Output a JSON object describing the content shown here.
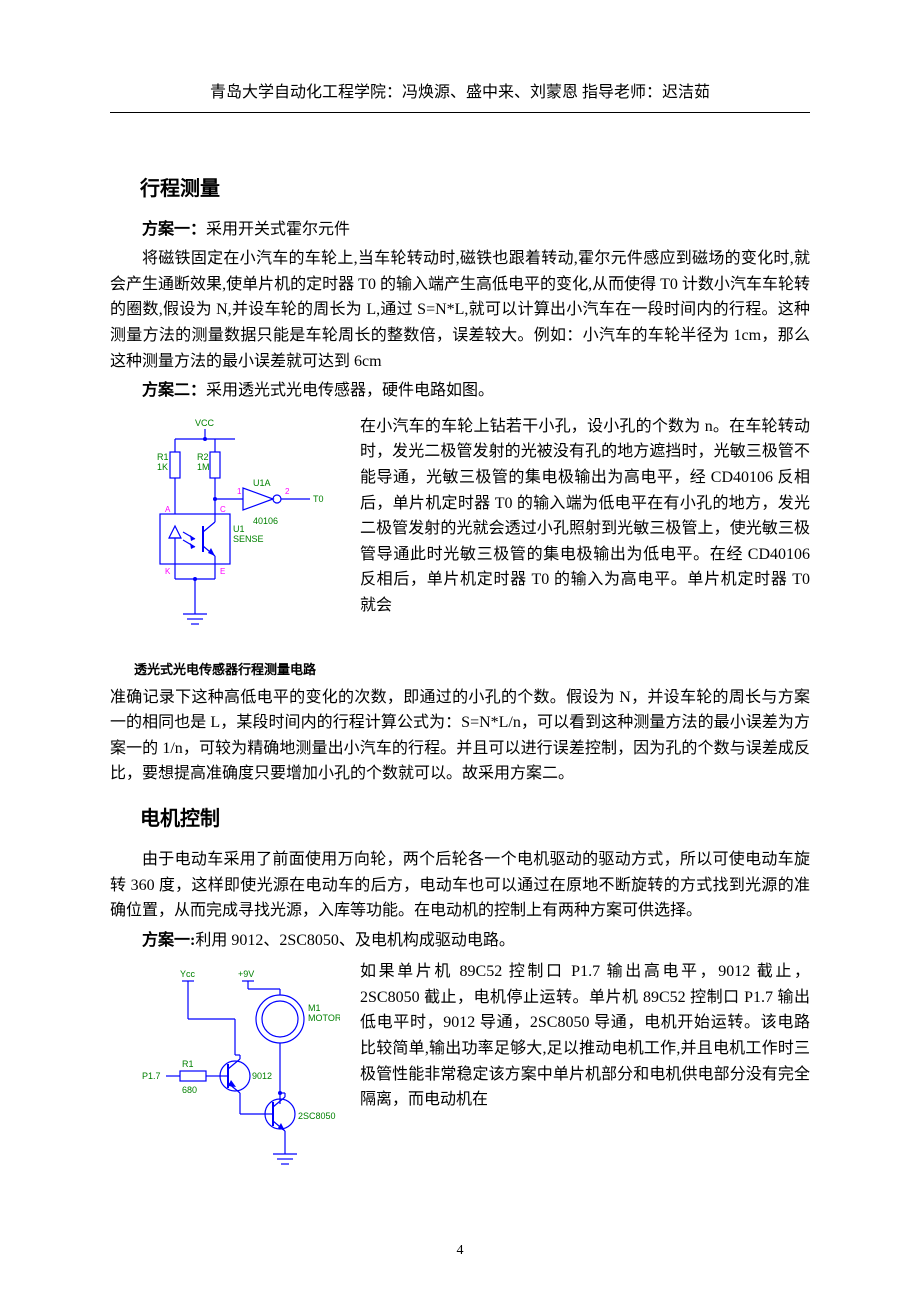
{
  "header": "青岛大学自动化工程学院：冯焕源、盛中来、刘蒙恩 指导老师：迟洁茹",
  "section1": {
    "heading": "行程测量",
    "scheme1_label": "方案一：",
    "scheme1_title": "采用开关式霍尔元件",
    "scheme1_body": "将磁铁固定在小汽车的车轮上,当车轮转动时,磁铁也跟着转动,霍尔元件感应到磁场的变化时,就会产生通断效果,使单片机的定时器 T0 的输入端产生高低电平的变化,从而使得 T0 计数小汽车车轮转的圈数,假设为 N,并设车轮的周长为 L,通过 S=N*L,就可以计算出小汽车在一段时间内的行程。这种测量方法的测量数据只能是车轮周长的整数倍，误差较大。例如：小汽车的车轮半径为 1cm，那么这种测量方法的最小误差就可达到 6cm",
    "scheme2_label": "方案二：",
    "scheme2_title": "采用透光式光电传感器，硬件电路如图。",
    "scheme2_right": "在小汽车的车轮上钻若干小孔，设小孔的个数为 n。在车轮转动时，发光二极管发射的光被没有孔的地方遮挡时，光敏三极管不能导通，光敏三极管的集电极输出为高电平，经 CD40106 反相后，单片机定时器 T0 的输入端为低电平在有小孔的地方，发光二极管发射的光就会透过小孔照射到光敏三极管上，使光敏三极管导通此时光敏三极管的集电极输出为低电平。在经 CD40106 反相后，单片机定时器 T0 的输入为高电平。单片机定时器 T0 就会",
    "scheme2_continue": "准确记录下这种高低电平的变化的次数，即通过的小孔的个数。假设为 N，并设车轮的周长与方案一的相同也是 L，某段时间内的行程计算公式为：S=N*L/n，可以看到这种测量方法的最小误差为方案一的 1/n，可较为精确地测量出小汽车的行程。并且可以进行误差控制，因为孔的个数与误差成反比，要想提高准确度只要增加小孔的个数就可以。故采用方案二。",
    "figure1_caption": "透光式光电传感器行程测量电路"
  },
  "section2": {
    "heading": "电机控制",
    "intro": "由于电动车采用了前面使用万向轮，两个后轮各一个电机驱动的驱动方式，所以可使电动车旋转 360 度，这样即使光源在电动车的后方，电动车也可以通过在原地不断旋转的方式找到光源的准确位置，从而完成寻找光源，入库等功能。在电动机的控制上有两种方案可供选择。",
    "scheme1_label": "方案一:",
    "scheme1_title": "利用 9012、2SC8050、及电机构成驱动电路。",
    "scheme1_right": "如果单片机 89C52 控制口 P1.7 输出高电平，9012 截止，2SC8050 截止，电机停止运转。单片机 89C52 控制口 P1.7 输出低电平时，9012 导通，2SC8050 导通，电机开始运转。该电路比较简单,输出功率足够大,足以推动电机工作,并且电机工作时三极管性能非常稳定该方案中单片机部分和电机供电部分没有完全隔离，而电动机在"
  },
  "circuit1": {
    "color_wire": "#0000ff",
    "color_label": "#008000",
    "color_pin": "#ff00ff",
    "stroke_width": 1.2,
    "font_size_label": 9,
    "font_size_pin": 8,
    "labels": {
      "vcc": "VCC",
      "r1_name": "R1",
      "r1_val": "1K",
      "r2_name": "R2",
      "r2_val": "1M",
      "u1a": "U1A",
      "chip": "40106",
      "sense": "U1\\nSENSE",
      "t0": "T0",
      "pin1": "1",
      "pin2": "2"
    }
  },
  "circuit2": {
    "color_wire": "#0000ff",
    "color_label": "#008000",
    "color_pin": "#ff00ff",
    "stroke_width": 1.2,
    "font_size_label": 9,
    "labels": {
      "vcc": "Ycc",
      "v9": "+9V",
      "motor": "M1\\nMOTOR",
      "q1": "9012",
      "q2": "2SC8050",
      "p17": "P1.7",
      "r1": "R1",
      "r1_val": "680"
    }
  },
  "page_number": "4"
}
